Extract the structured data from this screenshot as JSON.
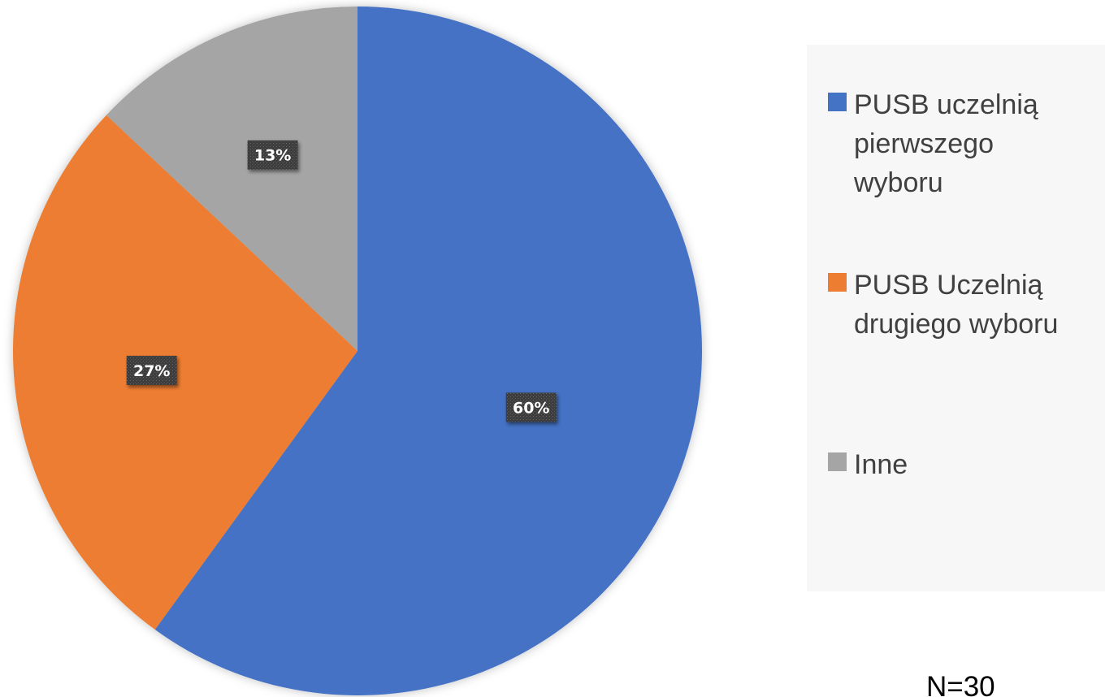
{
  "chart_data": {
    "type": "pie",
    "categories": [
      "PUSB uczelnią pierwszego wyboru",
      "PUSB Uczelnią drugiego wyboru",
      "Inne"
    ],
    "values": [
      60,
      27,
      13
    ],
    "data_labels": [
      "60%",
      "27%",
      "13%"
    ],
    "legend_labels": [
      "PUSB uczelnią\npierwszego\nwyboru",
      "PUSB Uczelnią\ndrugiego wyboru",
      "Inne"
    ],
    "colors": [
      "#4472c4",
      "#ed7d31",
      "#a5a5a5"
    ],
    "start_angle_deg": 0,
    "direction": "clockwise",
    "legend_position": "right",
    "title": "",
    "note": "N=30"
  }
}
